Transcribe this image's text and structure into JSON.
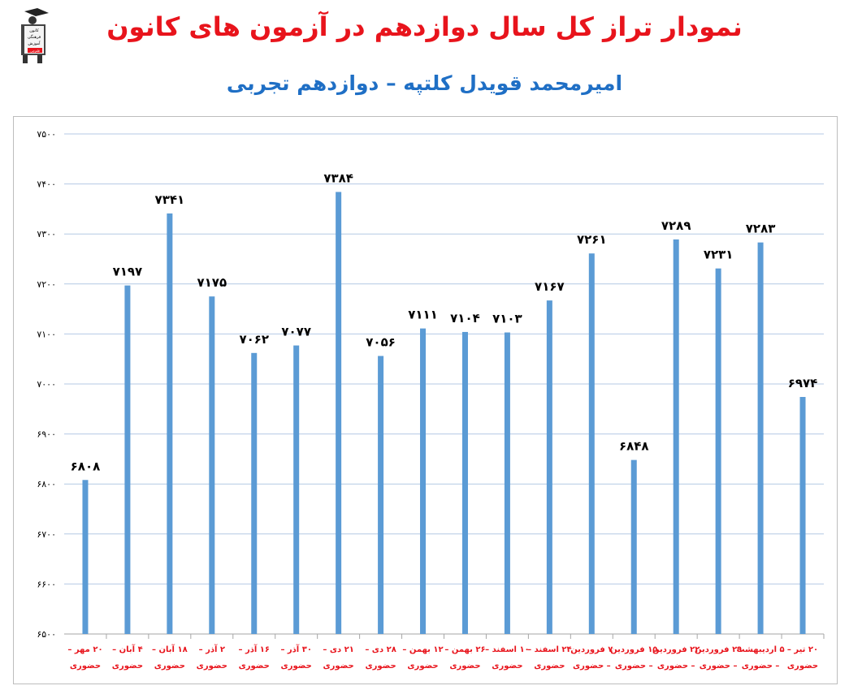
{
  "header": {
    "title": "نمودار تراز کل سال دوازدهم در آزمون های کانون",
    "subtitle": "امیرمحمد قویدل کلتپه – دوازدهم تجربی",
    "logo_line1": "کانون",
    "logo_line2": "فرهنگی",
    "logo_line3": "آموزش",
    "logo_badge": "قلم‌چی"
  },
  "chart_data": {
    "type": "bar",
    "title": "نمودار تراز کل سال دوازدهم در آزمون های کانون",
    "subtitle": "امیرمحمد قویدل کلتپه – دوازدهم تجربی",
    "categories": [
      [
        "۲۰ مهر –",
        "حضوری"
      ],
      [
        "۴ آبان –",
        "حضوری"
      ],
      [
        "۱۸ آبان –",
        "حضوری"
      ],
      [
        "۲ آذر –",
        "حضوری"
      ],
      [
        "۱۶ آذر –",
        "حضوری"
      ],
      [
        "۳۰ آذر –",
        "حضوری"
      ],
      [
        "۲۱ دی –",
        "حضوری"
      ],
      [
        "۲۸ دی –",
        "حضوری"
      ],
      [
        "۱۲ بهمن –",
        "حضوری"
      ],
      [
        "۲۶ بهمن –",
        "حضوری"
      ],
      [
        "۱۰ اسفند –",
        "حضوری"
      ],
      [
        "۲۴ اسفند –",
        "حضوری"
      ],
      [
        "۷ فروردین",
        "– حضوری"
      ],
      [
        "۱۵ فروردین",
        "– حضوری"
      ],
      [
        "۲۲ فروردین",
        "– حضوری"
      ],
      [
        "۲۹ فروردین",
        "– حضوری"
      ],
      [
        "۵ اردیبهشت",
        "– حضوری"
      ],
      [
        "۲۰ تیر –",
        "حضوری"
      ]
    ],
    "values": [
      6808,
      7197,
      7341,
      7175,
      7062,
      7077,
      7384,
      7056,
      7111,
      7104,
      7103,
      7167,
      7261,
      6848,
      7289,
      7231,
      7283,
      6974
    ],
    "value_labels": [
      "۶۸۰۸",
      "۷۱۹۷",
      "۷۳۴۱",
      "۷۱۷۵",
      "۷۰۶۲",
      "۷۰۷۷",
      "۷۳۸۴",
      "۷۰۵۶",
      "۷۱۱۱",
      "۷۱۰۴",
      "۷۱۰۳",
      "۷۱۶۷",
      "۷۲۶۱",
      "۶۸۴۸",
      "۷۲۸۹",
      "۷۲۳۱",
      "۷۲۸۳",
      "۶۹۷۴"
    ],
    "ylim": [
      6500,
      7500
    ],
    "yticks": [
      6500,
      6600,
      6700,
      6800,
      6900,
      7000,
      7100,
      7200,
      7300,
      7400,
      7500
    ],
    "ytick_labels": [
      "۶۵۰۰",
      "۶۶۰۰",
      "۶۷۰۰",
      "۶۸۰۰",
      "۶۹۰۰",
      "۷۰۰۰",
      "۷۱۰۰",
      "۷۲۰۰",
      "۷۳۰۰",
      "۷۴۰۰",
      "۷۵۰۰"
    ],
    "grid": true,
    "colors": {
      "bar": "#5b9bd5",
      "grid": "#b4c9e4",
      "tick_label": "#e8141c",
      "value_label": "#000000"
    }
  }
}
